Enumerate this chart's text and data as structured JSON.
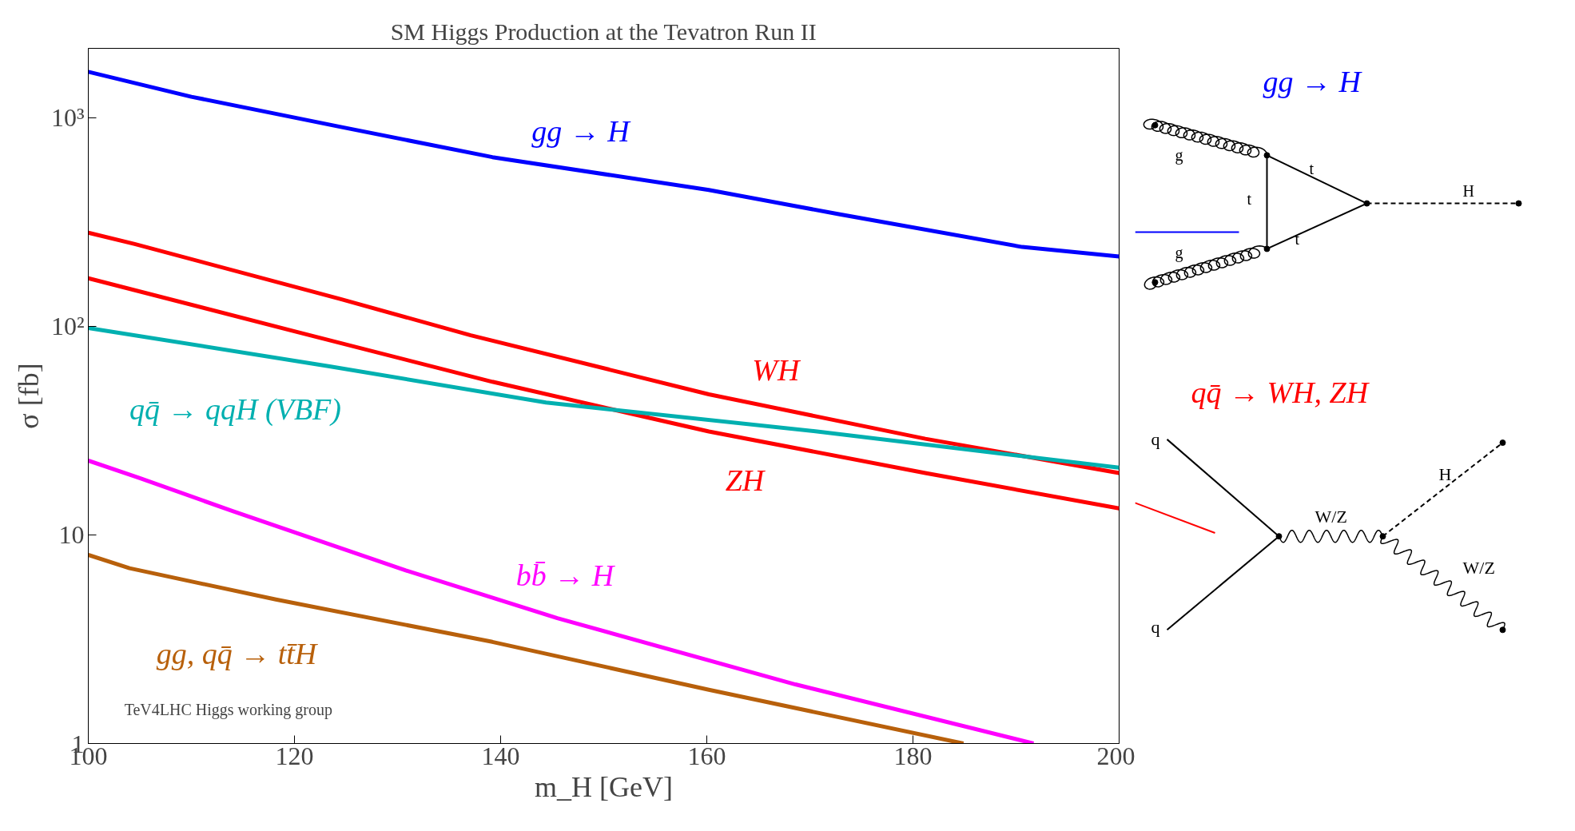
{
  "chart_data": {
    "type": "line",
    "title": "SM Higgs Production at the Tevatron Run II",
    "xlabel": "m_H [GeV]",
    "ylabel": "σ [fb]",
    "log": "y",
    "grid": false,
    "xlim": [
      100,
      200
    ],
    "ylim": [
      1,
      2150
    ],
    "xticks": [
      100,
      120,
      140,
      160,
      180,
      200
    ],
    "yticks": [
      1,
      10,
      {
        "value": 100,
        "label": "10²"
      },
      {
        "value": 1000,
        "label": "10³"
      }
    ],
    "series": [
      {
        "name": "gg → H",
        "color": "#0000ff",
        "x": [
          100,
          110,
          124.5,
          139.2,
          160.2,
          172.8,
          190.6,
          200
        ],
        "values": [
          1660,
          1260,
          903,
          647,
          450,
          345,
          240,
          216
        ]
      },
      {
        "name": "WH",
        "color": "#ff0000",
        "x": [
          100,
          104.5,
          124.5,
          137.1,
          160.2,
          181.2,
          200
        ],
        "values": [
          281,
          248,
          135,
          90.6,
          47.2,
          28.9,
          19.8
        ]
      },
      {
        "name": "ZH",
        "color": "#ff0000",
        "x": [
          100,
          120.3,
          139.2,
          160.2,
          181.2,
          200
        ],
        "values": [
          170,
          93.8,
          54.2,
          31.3,
          19.8,
          13.4
        ]
      },
      {
        "name": "qq̄ → qqH (VBF)",
        "color": "#00b0b0",
        "x": [
          100,
          123.4,
          144.4,
          170.7,
          200
        ],
        "values": [
          98.2,
          64.3,
          43.1,
          31.3,
          21
        ]
      },
      {
        "name": "bb̄ → H",
        "color": "#ff00ff",
        "x": [
          100,
          105,
          114,
          130.8,
          145.5,
          168.6,
          191.7
        ],
        "values": [
          22.7,
          18.7,
          13,
          6.76,
          3.99,
          1.92,
          1.0
        ]
      },
      {
        "name": "gg, qq̄ → tt̄H",
        "color": "#b8600b",
        "x": [
          100,
          104,
          118.2,
          139.2,
          160.2,
          184.9
        ],
        "values": [
          8.02,
          6.92,
          4.9,
          3.07,
          1.81,
          1.0
        ]
      }
    ],
    "annotations": [
      "TeV4LHC Higgs working group",
      "gg → H",
      "g",
      "g",
      "t",
      "t",
      "t",
      "H",
      "qq̄ → WH, ZH",
      "q",
      "q",
      "W/Z",
      "H",
      "W/Z"
    ]
  }
}
